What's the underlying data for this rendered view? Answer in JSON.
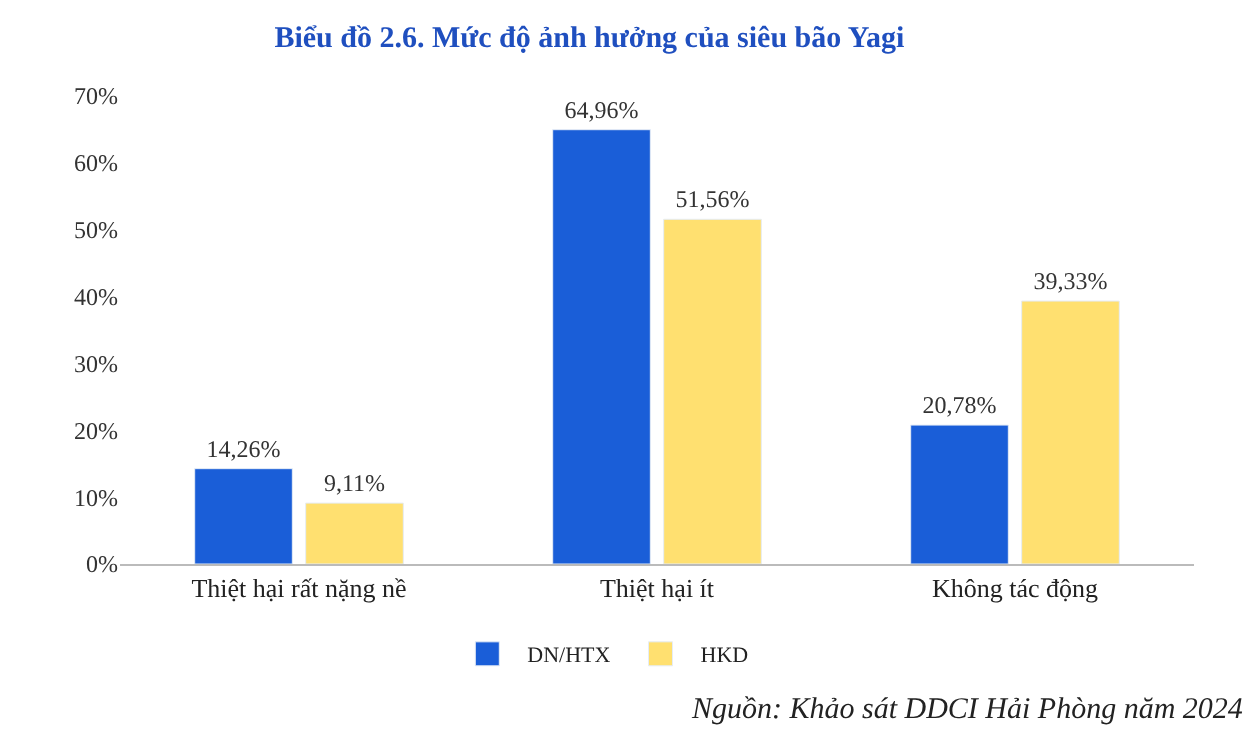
{
  "chart_data": {
    "type": "bar",
    "title": "Biểu đồ 2.6. Mức độ ảnh hưởng của siêu bão Yagi",
    "categories": [
      "Thiệt hại rất nặng nề",
      "Thiệt hại ít",
      "Không tác động"
    ],
    "series": [
      {
        "name": "DN/HTX",
        "color": "#1a5ed8",
        "values": [
          14.26,
          64.96,
          20.78
        ],
        "value_labels": [
          "14,26%",
          "64,96%",
          "20,78%"
        ]
      },
      {
        "name": "HKD",
        "color": "#ffe070",
        "values": [
          9.11,
          51.56,
          39.33
        ],
        "value_labels": [
          "9,11%",
          "51,56%",
          "39,33%"
        ]
      }
    ],
    "ylim": [
      0,
      70
    ],
    "yticks": [
      {
        "value": 0,
        "label": "0%"
      },
      {
        "value": 10,
        "label": "10%"
      },
      {
        "value": 20,
        "label": "20%"
      },
      {
        "value": 30,
        "label": "30%"
      },
      {
        "value": 40,
        "label": "40%"
      },
      {
        "value": 50,
        "label": "50%"
      },
      {
        "value": 60,
        "label": "60%"
      },
      {
        "value": 70,
        "label": "70%"
      }
    ],
    "legend": "bottom",
    "annotations": [
      "Nguồn: Khảo sát DDCI Hải Phòng năm 2024"
    ]
  }
}
